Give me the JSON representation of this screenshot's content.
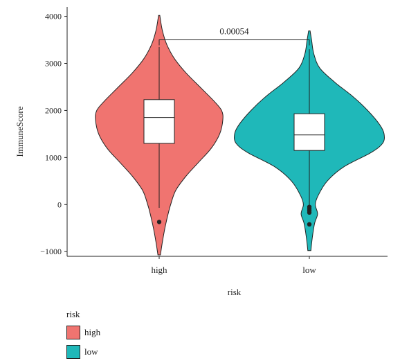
{
  "chart_data": {
    "type": "violin",
    "xlabel": "risk",
    "ylabel": "ImmuneScore",
    "categories": [
      "high",
      "low"
    ],
    "ylim": [
      -1100,
      4200
    ],
    "yticks": [
      -1000,
      0,
      1000,
      2000,
      3000,
      4000
    ],
    "ytick_labels": [
      "−1000",
      "0",
      "1000",
      "2000",
      "3000",
      "4000"
    ],
    "grid": false,
    "legend_position": "bottom-left",
    "groups": [
      {
        "name": "high",
        "color": "#F07470",
        "violin_min": -1070,
        "violin_max": 4020,
        "box": {
          "q1": 1300,
          "median": 1850,
          "q3": 2230,
          "whisker_low": -70,
          "whisker_high": 3350
        },
        "outliers": [
          -370
        ],
        "density": [
          [
            -1070,
            0.02
          ],
          [
            -800,
            0.05
          ],
          [
            -500,
            0.09
          ],
          [
            -200,
            0.14
          ],
          [
            0,
            0.18
          ],
          [
            300,
            0.26
          ],
          [
            600,
            0.42
          ],
          [
            900,
            0.62
          ],
          [
            1200,
            0.82
          ],
          [
            1500,
            0.95
          ],
          [
            1800,
            1.0
          ],
          [
            2000,
            0.98
          ],
          [
            2200,
            0.86
          ],
          [
            2500,
            0.64
          ],
          [
            2800,
            0.42
          ],
          [
            3100,
            0.24
          ],
          [
            3400,
            0.12
          ],
          [
            3700,
            0.05
          ],
          [
            4020,
            0.01
          ]
        ]
      },
      {
        "name": "low",
        "color": "#1FB8B9",
        "violin_min": -980,
        "violin_max": 3690,
        "box": {
          "q1": 1150,
          "median": 1480,
          "q3": 1930,
          "whisker_low": -150,
          "whisker_high": 3300
        },
        "outliers": [
          -50,
          -90,
          -130,
          -170,
          -420
        ],
        "density": [
          [
            -980,
            0.02
          ],
          [
            -700,
            0.04
          ],
          [
            -400,
            0.07
          ],
          [
            -200,
            0.11
          ],
          [
            0,
            0.08
          ],
          [
            200,
            0.12
          ],
          [
            500,
            0.24
          ],
          [
            800,
            0.46
          ],
          [
            1100,
            0.82
          ],
          [
            1300,
            0.98
          ],
          [
            1500,
            1.0
          ],
          [
            1700,
            0.94
          ],
          [
            2000,
            0.78
          ],
          [
            2300,
            0.58
          ],
          [
            2600,
            0.34
          ],
          [
            2900,
            0.14
          ],
          [
            3200,
            0.06
          ],
          [
            3500,
            0.03
          ],
          [
            3690,
            0.01
          ]
        ]
      }
    ],
    "annotations": [
      {
        "text": "0.00054",
        "y": 3500,
        "from": "high",
        "to": "low"
      }
    ]
  },
  "legend": {
    "title": "risk",
    "items": [
      {
        "label": "high",
        "color": "#F07470"
      },
      {
        "label": "low",
        "color": "#1FB8B9"
      }
    ]
  }
}
